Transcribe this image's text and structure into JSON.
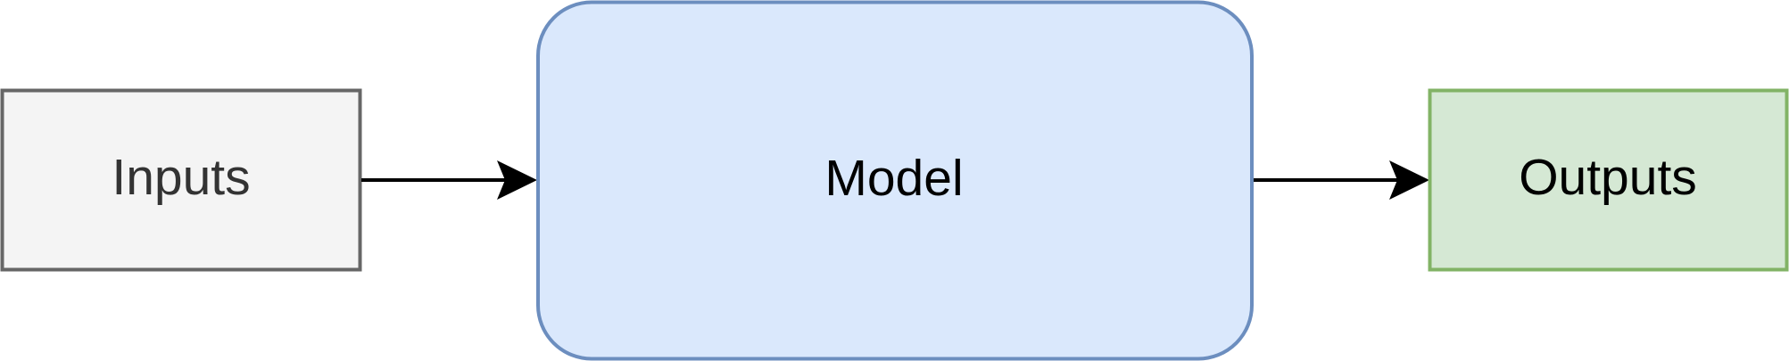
{
  "nodes": {
    "inputs": {
      "label": "Inputs",
      "fill": "#f4f4f4",
      "stroke": "#666666",
      "text_color": "#333333"
    },
    "model": {
      "label": "Model",
      "fill": "#dae8fc",
      "stroke": "#6c8ebf",
      "text_color": "#000000"
    },
    "outputs": {
      "label": "Outputs",
      "fill": "#d5e8d4",
      "stroke": "#82b366",
      "text_color": "#000000"
    }
  },
  "edges": [
    {
      "from": "Inputs",
      "to": "Model"
    },
    {
      "from": "Model",
      "to": "Outputs"
    }
  ],
  "edge_color": "#000000"
}
